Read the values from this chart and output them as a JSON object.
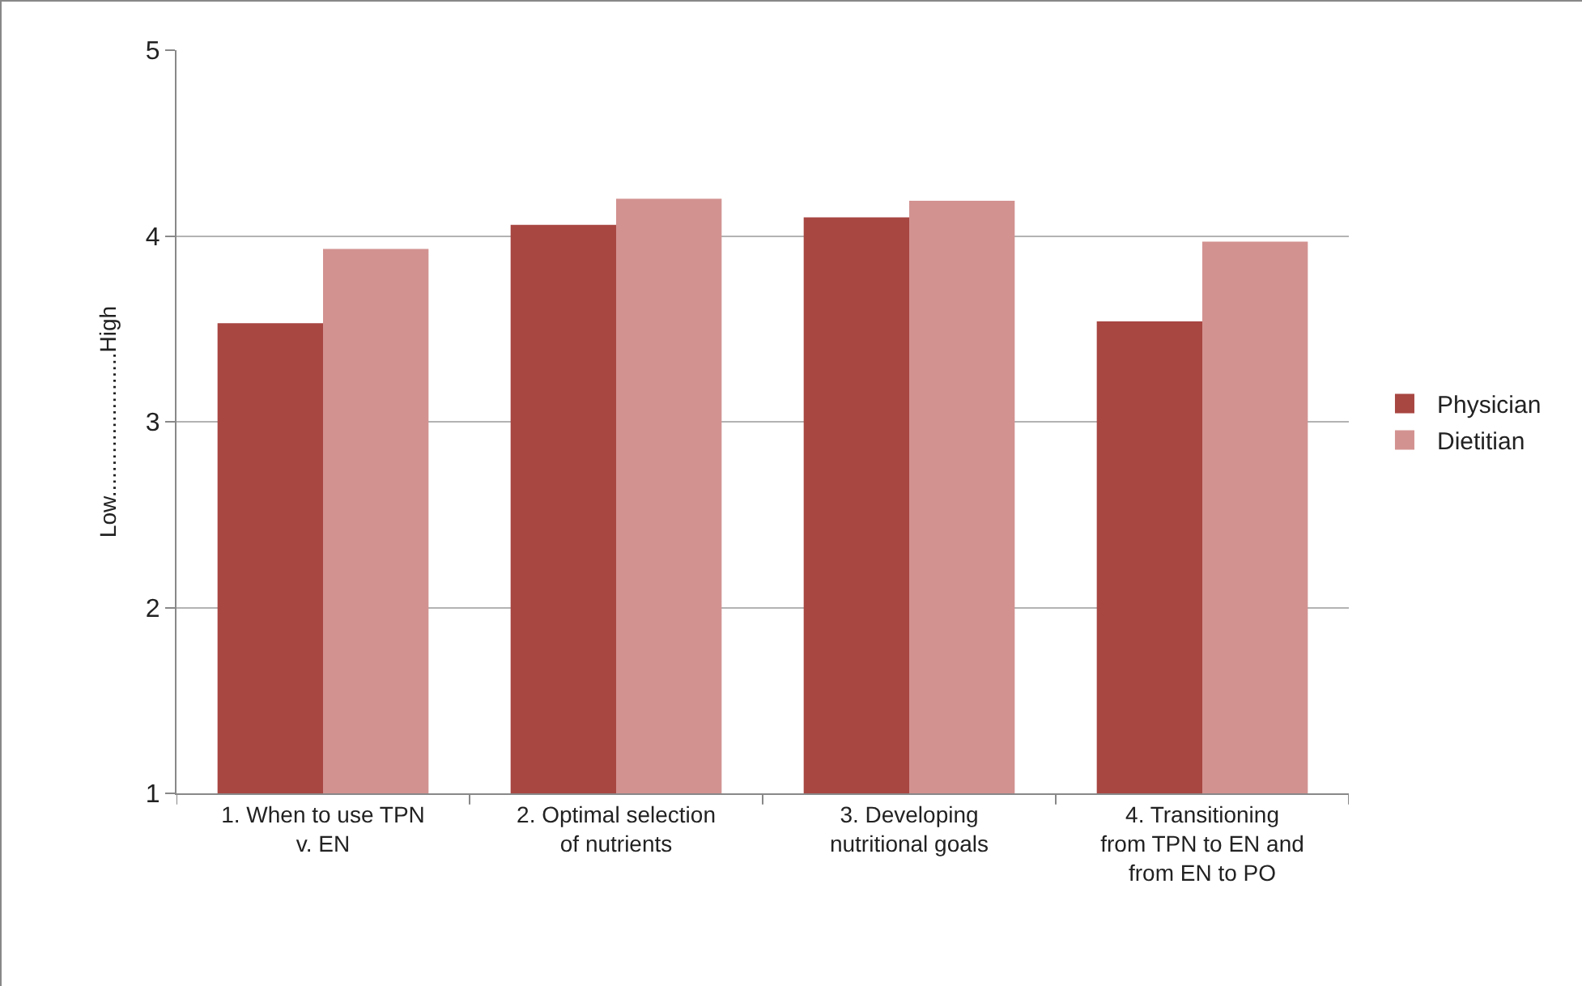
{
  "chart_data": {
    "type": "bar",
    "ylabel": "Low.......................High",
    "categories": [
      "1. When to use TPN v. EN",
      "2. Optimal selection of nutrients",
      "3. Developing nutritional goals",
      "4. Transitioning from TPN to EN and from EN to PO"
    ],
    "series": [
      {
        "name": "Physician",
        "color": "#a84642",
        "values": [
          3.53,
          4.06,
          4.1,
          3.54
        ]
      },
      {
        "name": "Dietitian",
        "color": "#d29290",
        "values": [
          3.93,
          4.2,
          4.19,
          3.97
        ]
      }
    ],
    "ylim": [
      1,
      5
    ],
    "yticks": [
      1,
      2,
      3,
      4,
      5
    ],
    "grid": "y",
    "legend": "right"
  }
}
